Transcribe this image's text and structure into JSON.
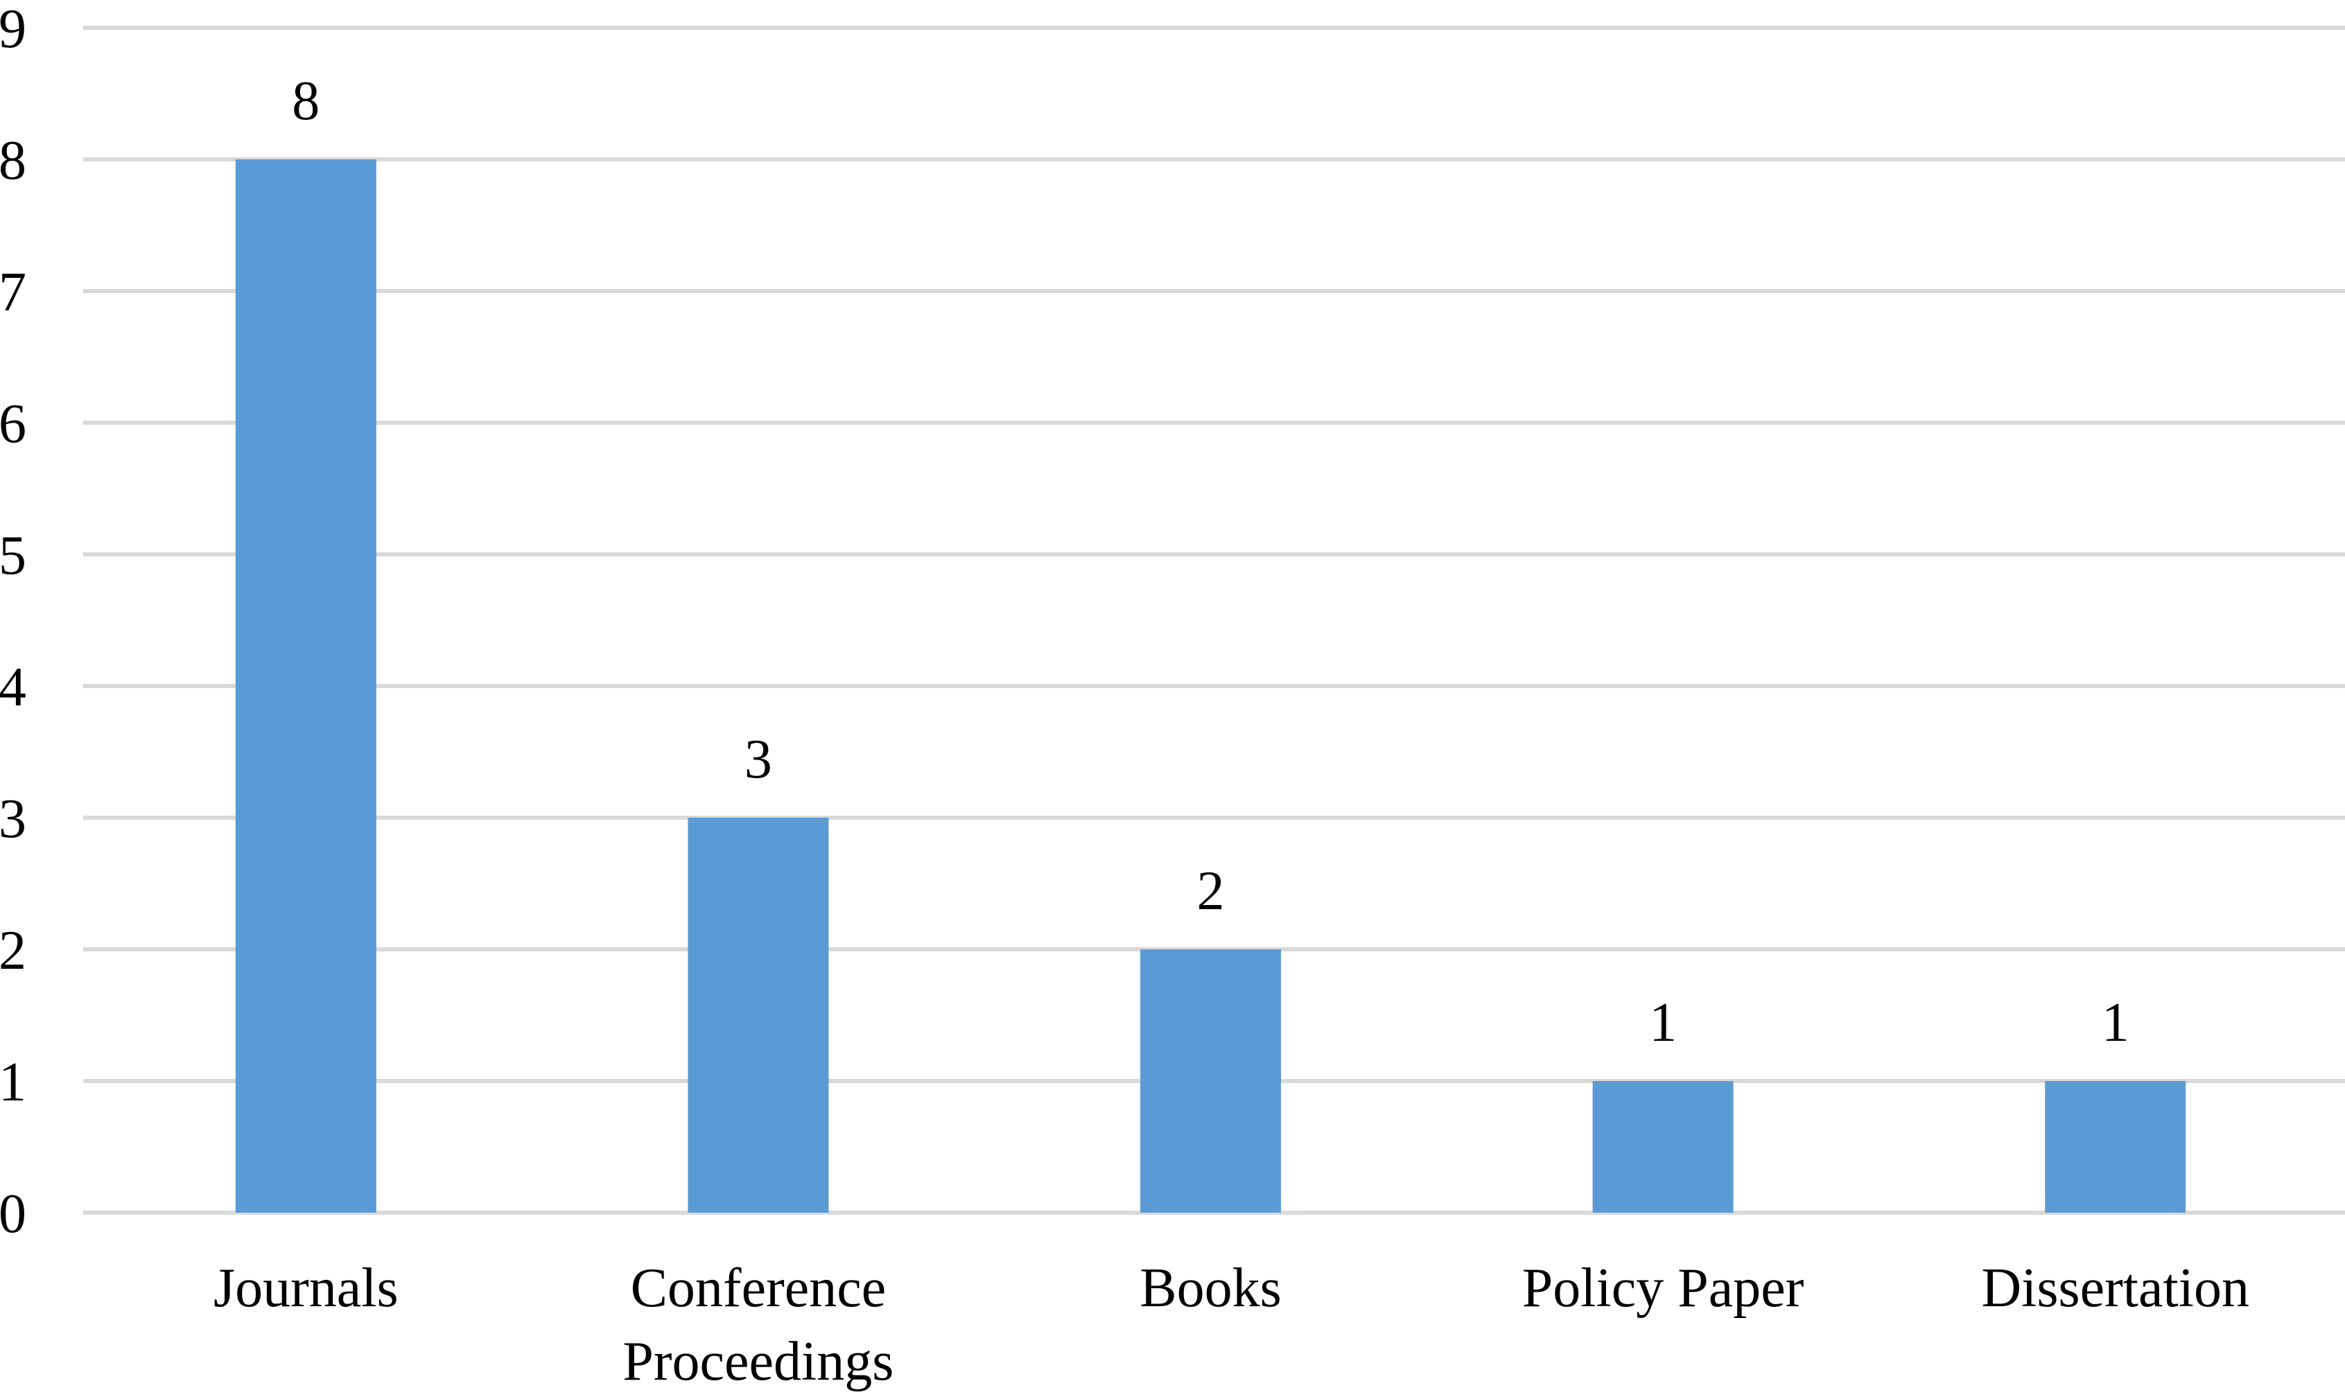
{
  "chart_data": {
    "type": "bar",
    "title": "",
    "xlabel": "",
    "ylabel": "",
    "categories": [
      [
        "Journals"
      ],
      [
        "Conference",
        "Proceedings"
      ],
      [
        "Books"
      ],
      [
        "Policy Paper"
      ],
      [
        "Dissertation"
      ]
    ],
    "values": [
      8,
      3,
      2,
      1,
      1
    ],
    "ylim": [
      0,
      9
    ],
    "yticks": [
      0,
      1,
      2,
      3,
      4,
      5,
      6,
      7,
      8,
      9
    ],
    "data_labels": true,
    "grid": true,
    "legend": "none",
    "bar_color": "#5b9bd5",
    "grid_color": "#d9d9d9"
  }
}
